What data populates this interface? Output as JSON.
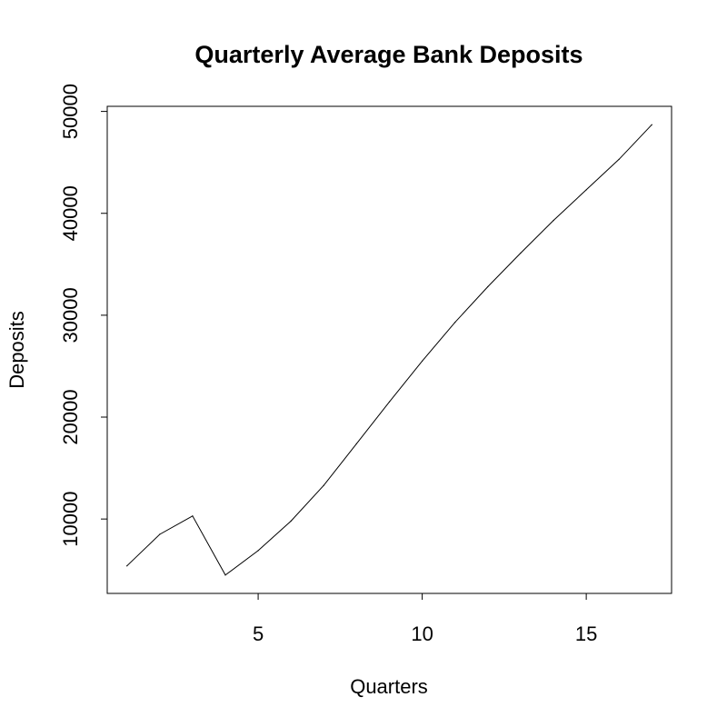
{
  "chart_data": {
    "type": "line",
    "title": "Quarterly Average Bank Deposits",
    "xlabel": "Quarters",
    "ylabel": "Deposits",
    "x": [
      1,
      2,
      3,
      4,
      5,
      6,
      7,
      8,
      9,
      10,
      11,
      12,
      13,
      14,
      15,
      16,
      17
    ],
    "series": [
      {
        "values": [
          5400,
          8500,
          10300,
          4500,
          6900,
          9800,
          13300,
          17400,
          21500,
          25500,
          29300,
          32800,
          36100,
          39300,
          42300,
          45300,
          48700
        ]
      }
    ],
    "xlim": [
      0.4,
      17.6
    ],
    "ylim": [
      2700,
      50500
    ],
    "x_ticks": [
      5,
      10,
      15
    ],
    "y_ticks": [
      10000,
      20000,
      30000,
      40000,
      50000
    ],
    "x_tick_labels": [
      "5",
      "10",
      "15"
    ],
    "y_tick_labels": [
      "10000",
      "20000",
      "30000",
      "40000",
      "50000"
    ],
    "grid": false,
    "line_color": "#000000"
  }
}
